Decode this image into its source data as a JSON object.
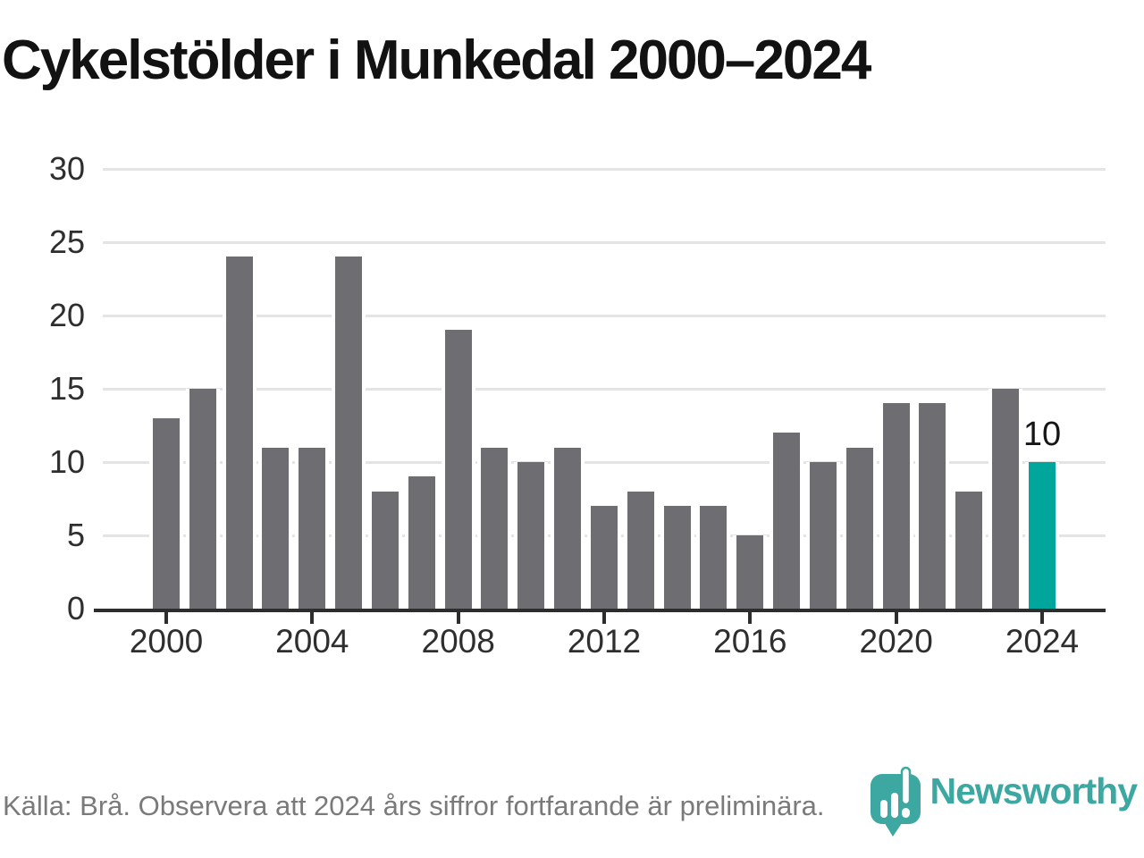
{
  "title": "Cykelstölder i Munkedal 2000–2024",
  "chart_data": {
    "type": "bar",
    "title": "Cykelstölder i Munkedal 2000–2024",
    "x": [
      2000,
      2001,
      2002,
      2003,
      2004,
      2005,
      2006,
      2007,
      2008,
      2009,
      2010,
      2011,
      2012,
      2013,
      2014,
      2015,
      2016,
      2017,
      2018,
      2019,
      2020,
      2021,
      2022,
      2023,
      2024
    ],
    "values": [
      13,
      15,
      24,
      11,
      11,
      24,
      8,
      9,
      19,
      11,
      10,
      11,
      7,
      8,
      7,
      7,
      5,
      12,
      10,
      11,
      14,
      14,
      8,
      15,
      10
    ],
    "highlight_index": 24,
    "annotation": {
      "text": "10",
      "target_year": 2024
    },
    "x_tick_labels": [
      "2000",
      "2004",
      "2008",
      "2012",
      "2016",
      "2020",
      "2024"
    ],
    "y_ticks": [
      0,
      5,
      10,
      15,
      20,
      25,
      30
    ],
    "ylim": [
      0,
      30
    ],
    "grid": true,
    "legend": "none",
    "colors": {
      "bar": "#6e6d71",
      "highlight": "#00a69c",
      "axis": "#2d2d2d",
      "gridline": "#e4e4e4",
      "tick_label": "#2e2e2e",
      "annotation": "#161616"
    }
  },
  "footer": {
    "source_note": "Källa: Brå. Observera att 2024 års siffror fortfarande är preliminära."
  },
  "logo": {
    "wordmark": "Newsworthy",
    "color": "#3da7a2",
    "icon": "newsworthy-pin-barchart-icon"
  }
}
